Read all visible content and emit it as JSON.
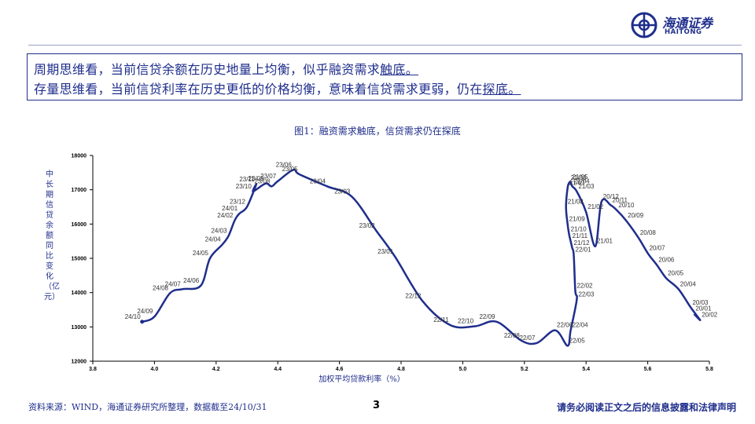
{
  "header": {
    "logo_cn": "海通证券",
    "logo_en": "HAITONG"
  },
  "message": {
    "line1_main": "周期思维看，当前信贷余额在历史地量上均衡，似乎融资需求",
    "line1_ul": "触底。",
    "line2_main": "存量思维看，当前信贷利率在历史更低的价格均衡，意味着信贷需求更弱，仍在",
    "line2_ul": "探底。"
  },
  "figure_title": "图1：融资需求触底，信贷需求仍在探底",
  "footer": {
    "source": "资料来源：WIND，海通证券研究所整理，数据截至24/10/31",
    "page": "3",
    "legal": "请务必阅读正文之后的信息披露和法律声明"
  },
  "colors": {
    "line": "#1f2e8c",
    "text": "#1f2e8c"
  },
  "chart_data": {
    "type": "line",
    "title": "图1：融资需求触底，信贷需求仍在探底",
    "xlabel": "加权平均贷款利率（%）",
    "ylabel": "中长期信贷余额同比变化（亿元）",
    "xlim": [
      3.8,
      5.8
    ],
    "ylim": [
      12000,
      18000
    ],
    "xticks": [
      "3.8",
      "4.0",
      "4.2",
      "4.4",
      "4.6",
      "4.8",
      "5.0",
      "5.2",
      "5.4",
      "5.6",
      "5.8"
    ],
    "yticks": [
      "12000",
      "13000",
      "14000",
      "15000",
      "16000",
      "17000",
      "18000"
    ],
    "grid": false,
    "series": [
      {
        "points": [
          {
            "label": "20/01",
            "x": 5.75,
            "y": 13380
          },
          {
            "label": "20/02",
            "x": 5.77,
            "y": 13200
          },
          {
            "label": "20/03",
            "x": 5.74,
            "y": 13560
          },
          {
            "label": "20/04",
            "x": 5.7,
            "y": 14100
          },
          {
            "label": "20/05",
            "x": 5.66,
            "y": 14420
          },
          {
            "label": "20/06",
            "x": 5.63,
            "y": 14800
          },
          {
            "label": "20/07",
            "x": 5.6,
            "y": 15150
          },
          {
            "label": "20/08",
            "x": 5.57,
            "y": 15600
          },
          {
            "label": "20/09",
            "x": 5.53,
            "y": 16100
          },
          {
            "label": "20/10",
            "x": 5.5,
            "y": 16400
          },
          {
            "label": "20/11",
            "x": 5.48,
            "y": 16550
          },
          {
            "label": "20/12",
            "x": 5.45,
            "y": 16650
          },
          {
            "label": "21/01",
            "x": 5.43,
            "y": 15350
          },
          {
            "label": "21/02",
            "x": 5.4,
            "y": 16350
          },
          {
            "label": "21/03",
            "x": 5.37,
            "y": 16950
          },
          {
            "label": "21/04",
            "x": 5.355,
            "y": 17100
          },
          {
            "label": "21/05",
            "x": 5.35,
            "y": 17220
          },
          {
            "label": "21/06",
            "x": 5.345,
            "y": 17200
          },
          {
            "label": "21/07",
            "x": 5.34,
            "y": 17050
          },
          {
            "label": "21/08",
            "x": 5.335,
            "y": 16500
          },
          {
            "label": "21/09",
            "x": 5.34,
            "y": 16000
          },
          {
            "label": "21/10",
            "x": 5.345,
            "y": 15700
          },
          {
            "label": "21/11",
            "x": 5.35,
            "y": 15500
          },
          {
            "label": "21/12",
            "x": 5.355,
            "y": 15300
          },
          {
            "label": "22/01",
            "x": 5.36,
            "y": 15100
          },
          {
            "label": "22/02",
            "x": 5.365,
            "y": 14050
          },
          {
            "label": "22/03",
            "x": 5.37,
            "y": 13800
          },
          {
            "label": "22/04",
            "x": 5.35,
            "y": 12900
          },
          {
            "label": "22/05",
            "x": 5.34,
            "y": 12450
          },
          {
            "label": "22/06",
            "x": 5.3,
            "y": 12900
          },
          {
            "label": "22/07",
            "x": 5.24,
            "y": 12530
          },
          {
            "label": "22/08",
            "x": 5.19,
            "y": 12600
          },
          {
            "label": "22/09",
            "x": 5.11,
            "y": 13150
          },
          {
            "label": "22/10",
            "x": 5.04,
            "y": 13020
          },
          {
            "label": "22/11",
            "x": 4.96,
            "y": 13050
          },
          {
            "label": "22/12",
            "x": 4.87,
            "y": 13750
          },
          {
            "label": "23/01",
            "x": 4.78,
            "y": 15050
          },
          {
            "label": "23/02",
            "x": 4.72,
            "y": 15800
          },
          {
            "label": "23/03",
            "x": 4.64,
            "y": 16800
          },
          {
            "label": "23/04",
            "x": 4.56,
            "y": 17100
          },
          {
            "label": "23/05",
            "x": 4.47,
            "y": 17450
          },
          {
            "label": "23/06",
            "x": 4.45,
            "y": 17580
          },
          {
            "label": "23/07",
            "x": 4.4,
            "y": 17250
          },
          {
            "label": "23/08",
            "x": 4.38,
            "y": 17100
          },
          {
            "label": "23/09",
            "x": 4.36,
            "y": 17180
          },
          {
            "label": "23/10",
            "x": 4.32,
            "y": 16950
          },
          {
            "label": "23/11",
            "x": 4.33,
            "y": 17150
          },
          {
            "label": "23/12",
            "x": 4.3,
            "y": 16500
          },
          {
            "label": "24/01",
            "x": 4.275,
            "y": 16300
          },
          {
            "label": "24/02",
            "x": 4.26,
            "y": 16100
          },
          {
            "label": "24/03",
            "x": 4.24,
            "y": 15650
          },
          {
            "label": "24/04",
            "x": 4.22,
            "y": 15400
          },
          {
            "label": "24/05",
            "x": 4.18,
            "y": 15000
          },
          {
            "label": "24/06",
            "x": 4.15,
            "y": 14200
          },
          {
            "label": "24/07",
            "x": 4.09,
            "y": 14100
          },
          {
            "label": "24/08",
            "x": 4.05,
            "y": 13980
          },
          {
            "label": "24/09",
            "x": 4.0,
            "y": 13300
          },
          {
            "label": "24/10",
            "x": 3.96,
            "y": 13150
          }
        ]
      }
    ]
  }
}
